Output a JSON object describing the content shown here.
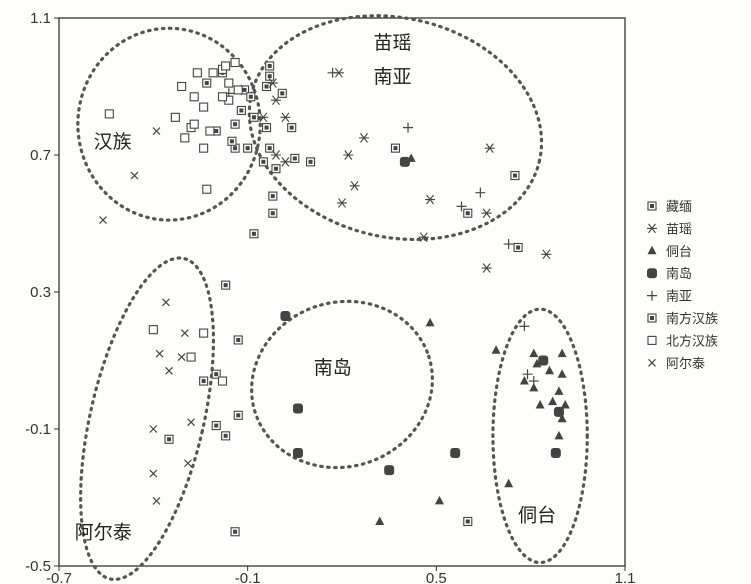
{
  "chart_data": {
    "type": "scatter",
    "xlim": [
      -0.7,
      1.1
    ],
    "ylim": [
      -0.5,
      1.1
    ],
    "x_ticks": [
      "-0.7",
      "-0.1",
      "0.5",
      "1.1"
    ],
    "y_ticks": [
      "1.1",
      "0.7",
      "0.3",
      "-0.1",
      "-0.5"
    ],
    "grid": false,
    "legend_position": "right",
    "series": [
      {
        "name": "藏缅",
        "marker": "boxdot",
        "values": [
          [
            -0.03,
            0.96
          ],
          [
            -0.03,
            0.93
          ],
          [
            -0.04,
            0.9
          ],
          [
            -0.08,
            0.81
          ],
          [
            -0.03,
            0.72
          ],
          [
            -0.01,
            0.66
          ],
          [
            -0.02,
            0.58
          ],
          [
            -0.02,
            0.53
          ],
          [
            -0.08,
            0.47
          ],
          [
            -0.04,
            0.78
          ],
          [
            -0.2,
            0.77
          ],
          [
            -0.14,
            0.79
          ],
          [
            -0.14,
            0.72
          ],
          [
            -0.15,
            0.74
          ],
          [
            -0.18,
            0.94
          ],
          [
            -0.11,
            0.89
          ],
          [
            -0.17,
            0.32
          ],
          [
            -0.13,
            0.16
          ],
          [
            -0.2,
            0.06
          ],
          [
            -0.24,
            0.04
          ],
          [
            -0.13,
            -0.06
          ],
          [
            -0.2,
            -0.09
          ],
          [
            -0.14,
            -0.4
          ],
          [
            -0.35,
            -0.13
          ],
          [
            -0.17,
            -0.12
          ]
        ]
      },
      {
        "name": "苗瑶",
        "marker": "asterisk",
        "values": [
          [
            -0.05,
            0.81
          ],
          [
            -0.01,
            0.86
          ],
          [
            -0.02,
            0.91
          ],
          [
            -0.01,
            0.7
          ],
          [
            0.02,
            0.68
          ],
          [
            0.02,
            0.81
          ],
          [
            0.19,
            0.94
          ],
          [
            0.27,
            0.75
          ],
          [
            0.22,
            0.7
          ],
          [
            0.24,
            0.61
          ],
          [
            0.2,
            0.56
          ],
          [
            0.48,
            0.57
          ],
          [
            0.46,
            0.46
          ],
          [
            0.67,
            0.72
          ],
          [
            0.66,
            0.53
          ],
          [
            0.66,
            0.37
          ],
          [
            0.85,
            0.41
          ]
        ]
      },
      {
        "name": "侗台",
        "marker": "triangle",
        "values": [
          [
            0.42,
            0.69
          ],
          [
            0.48,
            0.21
          ],
          [
            0.69,
            0.13
          ],
          [
            0.81,
            0.12
          ],
          [
            0.9,
            0.12
          ],
          [
            0.82,
            0.09
          ],
          [
            0.86,
            0.07
          ],
          [
            0.9,
            0.06
          ],
          [
            0.78,
            0.04
          ],
          [
            0.81,
            0.02
          ],
          [
            0.89,
            0.01
          ],
          [
            0.87,
            -0.02
          ],
          [
            0.91,
            -0.03
          ],
          [
            0.83,
            -0.03
          ],
          [
            0.9,
            -0.07
          ],
          [
            0.89,
            -0.12
          ],
          [
            0.73,
            -0.26
          ],
          [
            0.51,
            -0.31
          ],
          [
            0.32,
            -0.37
          ]
        ]
      },
      {
        "name": "南岛",
        "marker": "rounded-square",
        "values": [
          [
            0.4,
            0.68
          ],
          [
            0.84,
            0.1
          ],
          [
            0.89,
            -0.05
          ],
          [
            0.88,
            -0.17
          ],
          [
            0.02,
            0.23
          ],
          [
            0.06,
            -0.04
          ],
          [
            0.06,
            -0.17
          ],
          [
            0.35,
            -0.22
          ],
          [
            0.56,
            -0.17
          ]
        ]
      },
      {
        "name": "南亚",
        "marker": "plus",
        "values": [
          [
            -0.16,
            0.88
          ],
          [
            -0.12,
            0.89
          ],
          [
            0.17,
            0.94
          ],
          [
            0.41,
            0.78
          ],
          [
            0.58,
            0.55
          ],
          [
            0.64,
            0.59
          ],
          [
            0.73,
            0.44
          ],
          [
            0.78,
            0.2
          ],
          [
            0.81,
            0.04
          ],
          [
            0.79,
            0.06
          ]
        ]
      },
      {
        "name": "南方汉族",
        "marker": "boxdot",
        "values": [
          [
            -0.23,
            0.91
          ],
          [
            -0.09,
            0.87
          ],
          [
            -0.12,
            0.83
          ],
          [
            -0.1,
            0.72
          ],
          [
            -0.05,
            0.68
          ],
          [
            0.04,
            0.78
          ],
          [
            0.01,
            0.88
          ],
          [
            0.05,
            0.69
          ],
          [
            0.1,
            0.68
          ],
          [
            0.37,
            0.72
          ],
          [
            0.6,
            0.53
          ],
          [
            0.75,
            0.64
          ],
          [
            0.76,
            0.43
          ],
          [
            0.6,
            -0.37
          ]
        ]
      },
      {
        "name": "北方汉族",
        "marker": "square",
        "values": [
          [
            -0.54,
            0.82
          ],
          [
            -0.31,
            0.9
          ],
          [
            -0.26,
            0.94
          ],
          [
            -0.21,
            0.94
          ],
          [
            -0.18,
            0.95
          ],
          [
            -0.17,
            0.96
          ],
          [
            -0.14,
            0.97
          ],
          [
            -0.16,
            0.91
          ],
          [
            -0.13,
            0.89
          ],
          [
            -0.16,
            0.86
          ],
          [
            -0.18,
            0.87
          ],
          [
            -0.27,
            0.87
          ],
          [
            -0.24,
            0.84
          ],
          [
            -0.28,
            0.78
          ],
          [
            -0.33,
            0.81
          ],
          [
            -0.3,
            0.75
          ],
          [
            -0.22,
            0.77
          ],
          [
            -0.24,
            0.72
          ],
          [
            -0.27,
            0.79
          ],
          [
            -0.23,
            0.6
          ],
          [
            -0.4,
            0.19
          ],
          [
            -0.28,
            0.11
          ],
          [
            -0.24,
            0.18
          ],
          [
            -0.18,
            0.04
          ]
        ]
      },
      {
        "name": "阿尔泰",
        "marker": "cross",
        "values": [
          [
            -0.39,
            0.77
          ],
          [
            -0.46,
            0.64
          ],
          [
            -0.56,
            0.51
          ],
          [
            -0.36,
            0.27
          ],
          [
            -0.3,
            0.18
          ],
          [
            -0.38,
            0.12
          ],
          [
            -0.31,
            0.11
          ],
          [
            -0.4,
            -0.1
          ],
          [
            -0.4,
            -0.23
          ],
          [
            -0.29,
            -0.2
          ],
          [
            -0.39,
            -0.31
          ],
          [
            -0.28,
            -0.08
          ],
          [
            -0.35,
            0.07
          ]
        ]
      }
    ],
    "annotations": [
      {
        "text": "汉族",
        "x": -0.59,
        "y": 0.72
      },
      {
        "text": "苗瑶",
        "x": 0.3,
        "y": 1.01
      },
      {
        "text": "南亚",
        "x": 0.3,
        "y": 0.91
      },
      {
        "text": "南岛",
        "x": 0.11,
        "y": 0.06
      },
      {
        "text": "侗台",
        "x": 0.76,
        "y": -0.37
      },
      {
        "text": "阿尔泰",
        "x": -0.65,
        "y": -0.42
      }
    ],
    "clusters": [
      {
        "label": "汉族",
        "cx": -0.35,
        "cy": 0.79,
        "rx": 0.29,
        "ry": 0.28,
        "rotation": 0
      },
      {
        "label": "苗瑶 南亚",
        "cx": 0.37,
        "cy": 0.78,
        "rx": 0.47,
        "ry": 0.32,
        "rotation": 13
      },
      {
        "label": "南岛",
        "cx": 0.2,
        "cy": 0.03,
        "rx": 0.29,
        "ry": 0.24,
        "rotation": -18
      },
      {
        "label": "侗台",
        "cx": 0.83,
        "cy": -0.12,
        "rx": 0.15,
        "ry": 0.37,
        "rotation": 0
      },
      {
        "label": "阿尔泰",
        "cx": -0.42,
        "cy": -0.07,
        "rx": 0.18,
        "ry": 0.48,
        "rotation": 13
      }
    ]
  },
  "colors": {
    "marker": "#444444",
    "ellipse": "#555555",
    "axis": "#333333"
  }
}
